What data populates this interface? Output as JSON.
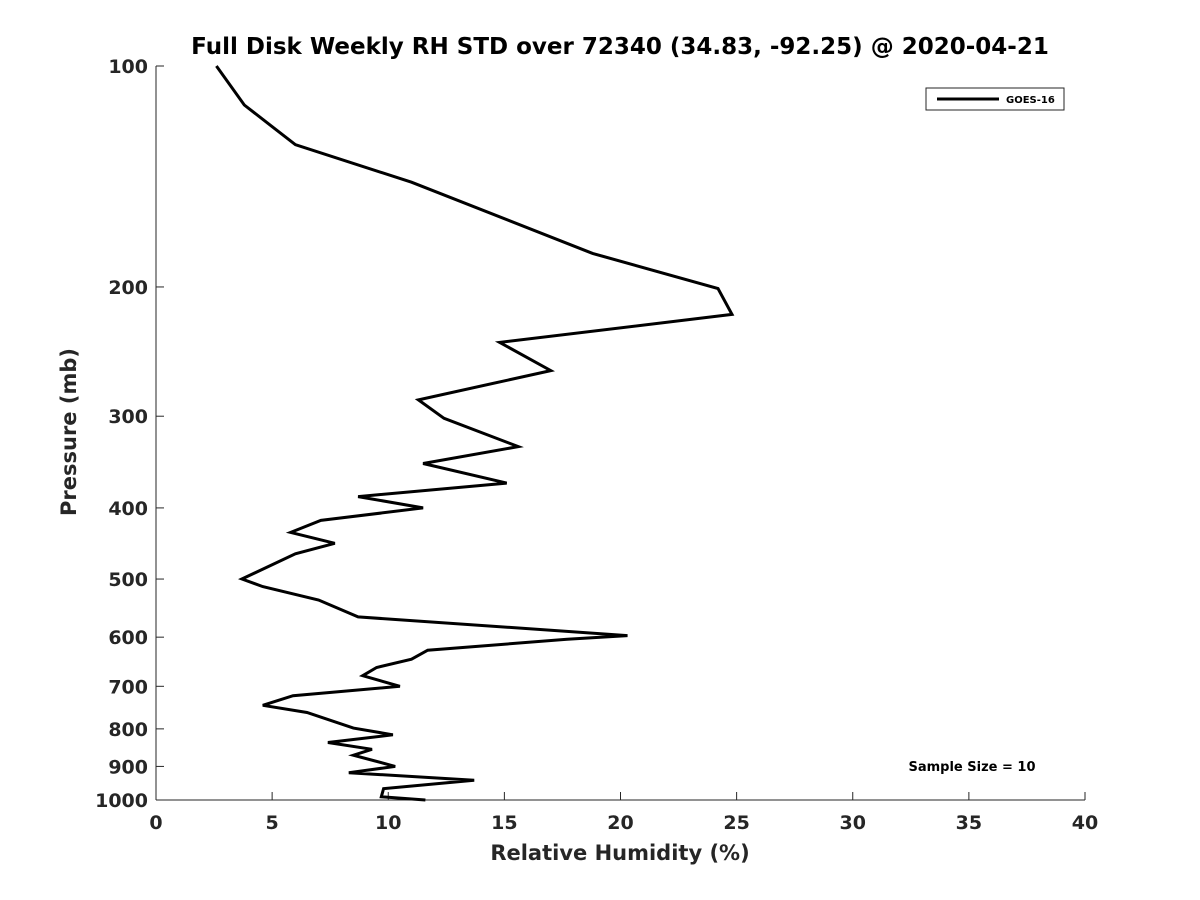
{
  "chart_data": {
    "type": "line",
    "title": "Full Disk Weekly RH STD over 72340 (34.83, -92.25) @ 2020-04-21",
    "xlabel": "Relative Humidity (%)",
    "ylabel": "Pressure (mb)",
    "xlim": [
      0,
      40
    ],
    "ylim": [
      100,
      1000
    ],
    "y_scale": "log",
    "y_reversed": true,
    "grid": false,
    "legend_position": "top-right",
    "x_ticks": [
      0,
      5,
      10,
      15,
      20,
      25,
      30,
      35,
      40
    ],
    "x_tick_labels": [
      "0",
      "5",
      "10",
      "15",
      "20",
      "25",
      "30",
      "35",
      "40"
    ],
    "y_ticks": [
      100,
      200,
      300,
      400,
      500,
      600,
      700,
      800,
      900,
      1000
    ],
    "y_tick_labels": [
      "100",
      "200",
      "300",
      "400",
      "500",
      "600",
      "700",
      "800",
      "900",
      "1000"
    ],
    "annotation": "Sample Size = 10",
    "series": [
      {
        "name": "GOES-16",
        "color": "#000000",
        "x": [
          2.6,
          3.8,
          6.0,
          11.0,
          18.8,
          24.2,
          24.8,
          14.8,
          17.0,
          11.3,
          12.4,
          15.6,
          11.5,
          15.1,
          8.7,
          11.5,
          7.1,
          5.8,
          7.7,
          6.0,
          3.7,
          4.6,
          7.0,
          8.7,
          20.3,
          17.7,
          11.7,
          11.0,
          9.5,
          8.9,
          10.5,
          5.9,
          4.6,
          6.5,
          8.5,
          10.2,
          7.4,
          9.3,
          8.5,
          10.3,
          8.3,
          13.7,
          9.8,
          9.7,
          11.6
        ],
        "y": [
          100,
          113,
          128,
          144,
          180,
          201,
          218,
          238,
          260,
          285,
          302,
          330,
          348,
          370,
          386,
          400,
          416,
          432,
          447,
          462,
          500,
          512,
          534,
          563,
          597,
          604,
          625,
          643,
          660,
          677,
          700,
          721,
          743,
          760,
          798,
          815,
          835,
          853,
          869,
          900,
          918,
          940,
          965,
          990,
          1000
        ]
      }
    ]
  }
}
